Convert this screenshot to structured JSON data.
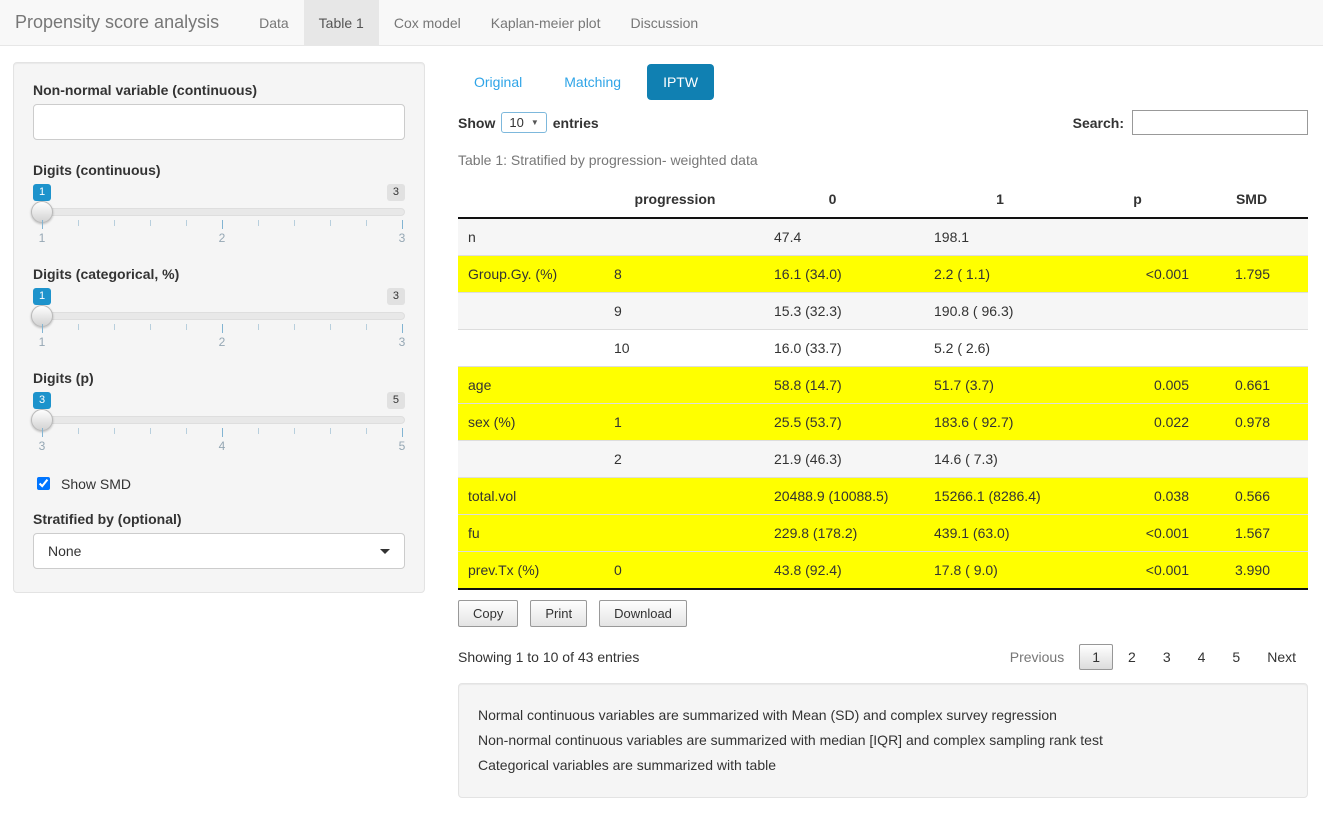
{
  "navbar": {
    "title": "Propensity score analysis",
    "tabs": [
      {
        "label": "Data",
        "active": false
      },
      {
        "label": "Table 1",
        "active": true
      },
      {
        "label": "Cox model",
        "active": false
      },
      {
        "label": "Kaplan-meier plot",
        "active": false
      },
      {
        "label": "Discussion",
        "active": false
      }
    ]
  },
  "sidebar": {
    "nonnormal_label": "Non-normal variable (continuous)",
    "nonnormal_value": "",
    "sliders": [
      {
        "label": "Digits (continuous)",
        "value": "1",
        "min": "1",
        "mid": "2",
        "max": "3"
      },
      {
        "label": "Digits (categorical, %)",
        "value": "1",
        "min": "1",
        "mid": "2",
        "max": "3"
      },
      {
        "label": "Digits (p)",
        "value": "3",
        "min": "3",
        "mid": "4",
        "max": "5"
      }
    ],
    "show_smd_label": "Show SMD",
    "show_smd_checked": true,
    "stratified_label": "Stratified by (optional)",
    "stratified_value": "None"
  },
  "main": {
    "pills": [
      {
        "label": "Original",
        "active": false
      },
      {
        "label": "Matching",
        "active": false
      },
      {
        "label": "IPTW",
        "active": true
      }
    ],
    "length_control": {
      "prefix": "Show",
      "value": "10",
      "suffix": "entries"
    },
    "search_label": "Search:",
    "search_value": "",
    "caption": "Table 1: Stratified by progression- weighted data",
    "table": {
      "headers": [
        "",
        "progression",
        "0",
        "1",
        "p",
        "SMD"
      ],
      "rows": [
        {
          "cells": [
            "n",
            "",
            "47.4",
            "198.1",
            "",
            ""
          ],
          "highlight": false,
          "stripe": true
        },
        {
          "cells": [
            "Group.Gy. (%)",
            "8",
            "16.1 (34.0)",
            "2.2 ( 1.1)",
            "<0.001",
            "1.795"
          ],
          "highlight": true,
          "stripe": false
        },
        {
          "cells": [
            "",
            "9",
            "15.3 (32.3)",
            "190.8 ( 96.3)",
            "",
            ""
          ],
          "highlight": false,
          "stripe": true
        },
        {
          "cells": [
            "",
            "10",
            "16.0 (33.7)",
            "5.2 ( 2.6)",
            "",
            ""
          ],
          "highlight": false,
          "stripe": false
        },
        {
          "cells": [
            "age",
            "",
            "58.8 (14.7)",
            "51.7 (3.7)",
            "0.005",
            "0.661"
          ],
          "highlight": true,
          "stripe": false
        },
        {
          "cells": [
            "sex (%)",
            "1",
            "25.5 (53.7)",
            "183.6 ( 92.7)",
            "0.022",
            "0.978"
          ],
          "highlight": true,
          "stripe": false
        },
        {
          "cells": [
            "",
            "2",
            "21.9 (46.3)",
            "14.6 ( 7.3)",
            "",
            ""
          ],
          "highlight": false,
          "stripe": true
        },
        {
          "cells": [
            "total.vol",
            "",
            "20488.9 (10088.5)",
            "15266.1 (8286.4)",
            "0.038",
            "0.566"
          ],
          "highlight": true,
          "stripe": false
        },
        {
          "cells": [
            "fu",
            "",
            "229.8 (178.2)",
            "439.1 (63.0)",
            "<0.001",
            "1.567"
          ],
          "highlight": true,
          "stripe": false
        },
        {
          "cells": [
            "prev.Tx (%)",
            "0",
            "43.8 (92.4)",
            "17.8 ( 9.0)",
            "<0.001",
            "3.990"
          ],
          "highlight": true,
          "stripe": false
        }
      ]
    },
    "buttons": [
      "Copy",
      "Print",
      "Download"
    ],
    "info": "Showing 1 to 10 of 43 entries",
    "pagination": {
      "previous": "Previous",
      "pages": [
        "1",
        "2",
        "3",
        "4",
        "5"
      ],
      "current": "1",
      "next": "Next"
    },
    "notes": [
      "Normal continuous variables are summarized with Mean (SD) and complex survey regression",
      "Non-normal continuous variables are summarized with median [IQR] and complex sampling rank test",
      "Categorical variables are summarized with table"
    ]
  },
  "colors": {
    "accent_pill": "#1080b2",
    "link_blue": "#2fa4e7",
    "slider_badge_blue": "#1d93cc",
    "highlight_yellow": "#ffff00",
    "navbar_bg": "#f8f8f8",
    "panel_bg": "#f5f5f5"
  }
}
